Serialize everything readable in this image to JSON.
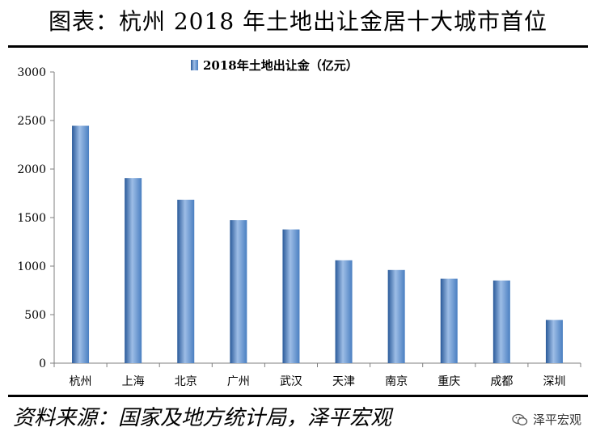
{
  "header": {
    "title": "图表：杭州 2018 年土地出让金居十大城市首位"
  },
  "footer": {
    "source": "资料来源：国家及地方统计局，泽平宏观",
    "brand": "泽平宏观",
    "brand_icon": "wechat-icon"
  },
  "colors": {
    "bar": "#4a7fc1",
    "bar_dark": "#2a5a9a",
    "bar_light": "#9dbde6",
    "axis": "#7f7f7f"
  },
  "chart_data": {
    "type": "bar",
    "legend": "2018年土地出让金（亿元）",
    "legend_position": "top-center",
    "categories": [
      "杭州",
      "上海",
      "北京",
      "广州",
      "武汉",
      "天津",
      "南京",
      "重庆",
      "成都",
      "深圳"
    ],
    "values": [
      2446,
      1907,
      1684,
      1474,
      1378,
      1060,
      960,
      870,
      852,
      445
    ],
    "ylim": [
      0,
      3000
    ],
    "yticks": [
      0,
      500,
      1000,
      1500,
      2000,
      2500,
      3000
    ],
    "grid": false
  }
}
